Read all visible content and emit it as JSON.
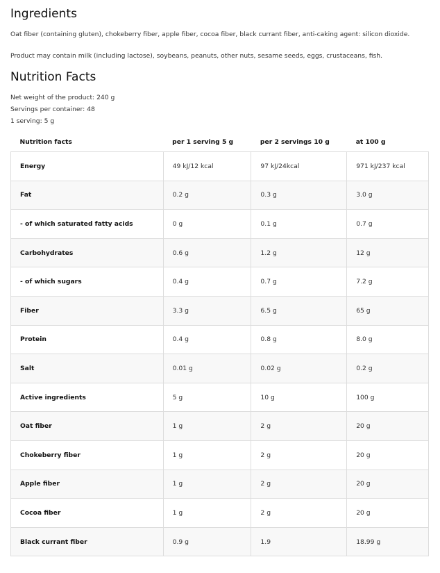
{
  "ingredients": {
    "title": "Ingredients",
    "paragraphs": [
      "Oat fiber (containing gluten), chokeberry fiber, apple fiber, cocoa fiber, black currant fiber, anti-caking agent: silicon dioxide.",
      "Product may contain milk (including lactose), soybeans, peanuts, other nuts, sesame seeds, eggs, crustaceans, fish."
    ]
  },
  "nutrition": {
    "title": "Nutrition Facts",
    "info": [
      "Net weight of the product: 240 g",
      "Servings per container: 48",
      "1 serving: 5 g"
    ],
    "table": {
      "header": [
        "Nutrition facts",
        "per 1 serving 5 g",
        "per 2 servings 10 g",
        "at 100 g"
      ],
      "rows": [
        [
          "Energy",
          "49 kJ/12 kcal",
          "97 kJ/24kcal",
          "971 kJ/237 kcal"
        ],
        [
          "Fat",
          "0.2 g",
          "0.3 g",
          "3.0 g"
        ],
        [
          "- of which saturated fatty acids",
          "0 g",
          "0.1 g",
          "0.7 g"
        ],
        [
          "Carbohydrates",
          "0.6 g",
          "1.2 g",
          "12 g"
        ],
        [
          "- of which sugars",
          "0.4 g",
          "0.7 g",
          "7.2 g"
        ],
        [
          "Fiber",
          "3.3 g",
          "6.5 g",
          "65 g"
        ],
        [
          "Protein",
          "0.4 g",
          "0.8 g",
          "8.0 g"
        ],
        [
          "Salt",
          "0.01 g",
          "0.02 g",
          "0.2 g"
        ],
        [
          "Active ingredients",
          "5 g",
          "10 g",
          "100 g"
        ],
        [
          "Oat fiber",
          "1 g",
          "2 g",
          "20 g"
        ],
        [
          "Chokeberry fiber",
          "1 g",
          "2 g",
          "20 g"
        ],
        [
          "Apple fiber",
          "1 g",
          "2 g",
          "20 g"
        ],
        [
          "Cocoa fiber",
          "1 g",
          "2 g",
          "20 g"
        ],
        [
          "Black currant fiber",
          "0.9 g",
          "1.9",
          "18.99 g"
        ]
      ]
    }
  }
}
